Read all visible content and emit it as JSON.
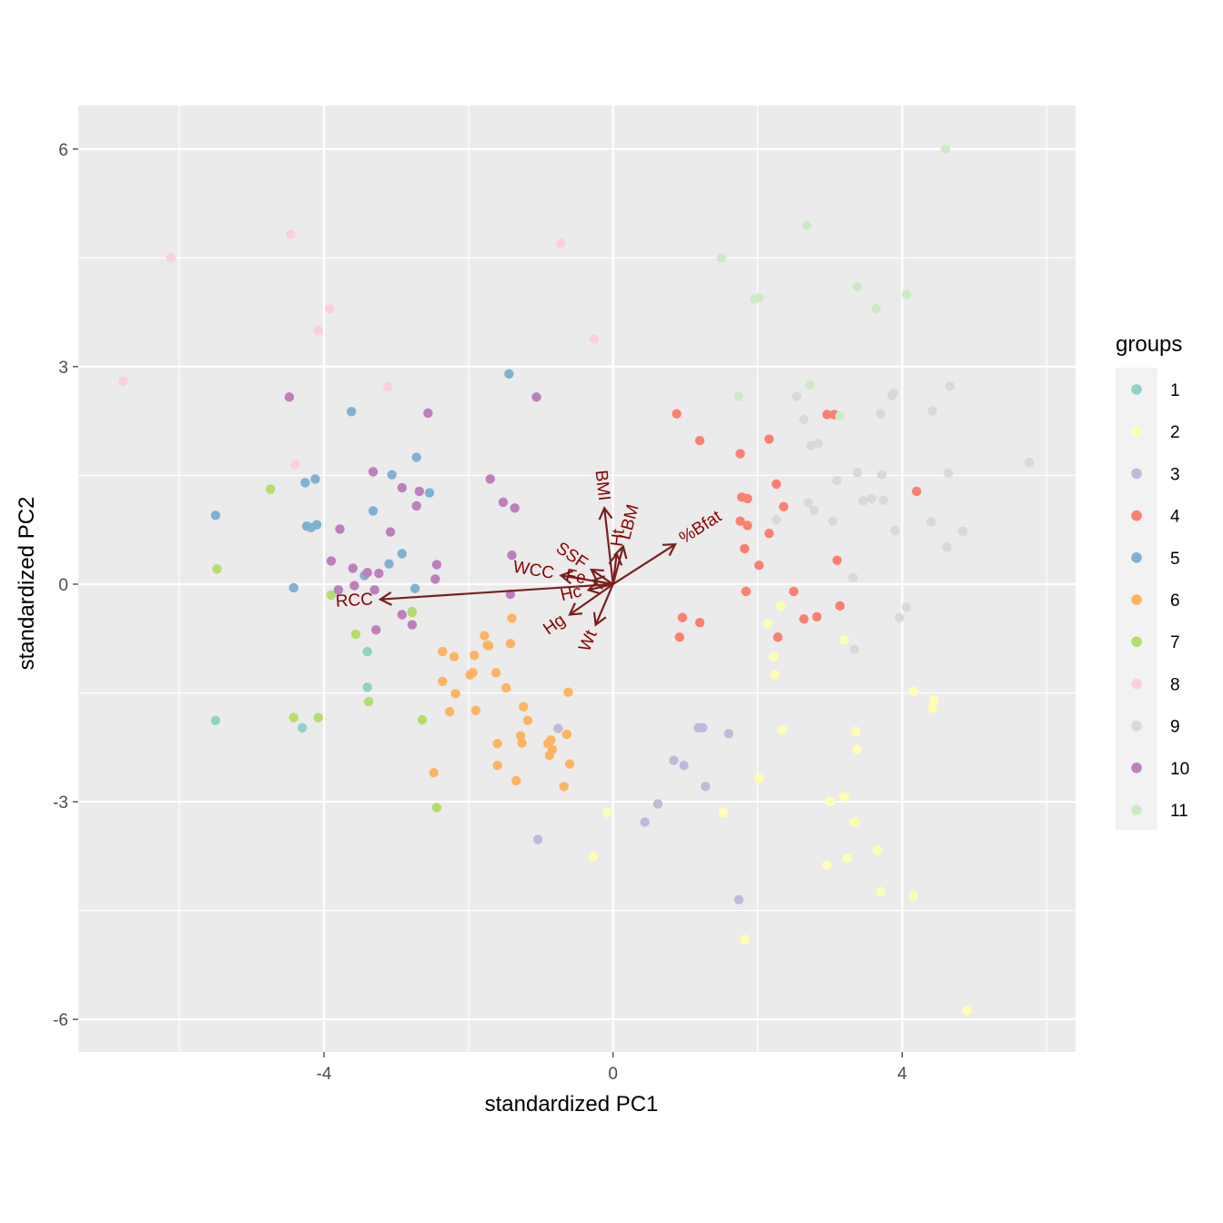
{
  "chart_data": {
    "type": "scatter",
    "xlabel": "standardized PC1",
    "ylabel": "standardized PC2",
    "xlim": [
      -7.4,
      6.4
    ],
    "ylim": [
      -6.45,
      6.6
    ],
    "xticks": [
      -4,
      0,
      4
    ],
    "yticks": [
      -6,
      -3,
      0,
      3,
      6
    ],
    "grid": true,
    "legend": {
      "title": "groups",
      "position": "right",
      "entries": [
        "1",
        "2",
        "3",
        "4",
        "5",
        "6",
        "7",
        "8",
        "9",
        "10",
        "11"
      ]
    },
    "colors": {
      "1": "#8DD3C7",
      "2": "#FFFFB3",
      "3": "#BEBADA",
      "4": "#FB8072",
      "5": "#80B1D3",
      "6": "#FDB462",
      "7": "#B3DE69",
      "8": "#FCCDE5",
      "9": "#D9D9D9",
      "10": "#BC80BD",
      "11": "#CCEBC5"
    },
    "arrow_color": "#7a1f1f",
    "series": [
      {
        "name": "1",
        "points": [
          [
            -5.5,
            -1.88
          ],
          [
            -4.3,
            -1.98
          ],
          [
            -3.4,
            -0.93
          ],
          [
            -3.4,
            -1.42
          ],
          [
            -2.78,
            -0.38
          ]
        ]
      },
      {
        "name": "2",
        "points": [
          [
            -0.08,
            -3.15
          ],
          [
            -0.28,
            -3.76
          ],
          [
            1.52,
            -3.15
          ],
          [
            1.82,
            -4.9
          ],
          [
            2.02,
            -2.68
          ],
          [
            2.22,
            -1.0
          ],
          [
            2.24,
            -1.25
          ],
          [
            2.32,
            -0.3
          ],
          [
            2.34,
            -2.01
          ],
          [
            2.14,
            -0.54
          ],
          [
            2.96,
            -3.87
          ],
          [
            3.0,
            -3.0
          ],
          [
            3.2,
            -2.93
          ],
          [
            3.24,
            -3.78
          ],
          [
            3.34,
            -3.28
          ],
          [
            3.36,
            -2.03
          ],
          [
            3.38,
            -2.28
          ],
          [
            3.2,
            -0.77
          ],
          [
            3.66,
            -3.67
          ],
          [
            3.7,
            -4.24
          ],
          [
            4.16,
            -1.48
          ],
          [
            4.16,
            -4.3
          ],
          [
            4.42,
            -1.71
          ],
          [
            4.44,
            -1.6
          ],
          [
            4.9,
            -5.88
          ]
        ]
      },
      {
        "name": "3",
        "points": [
          [
            -1.04,
            -3.52
          ],
          [
            -0.76,
            -1.99
          ],
          [
            0.44,
            -3.28
          ],
          [
            0.62,
            -3.03
          ],
          [
            0.84,
            -2.43
          ],
          [
            0.98,
            -2.5
          ],
          [
            1.18,
            -1.98
          ],
          [
            1.24,
            -1.98
          ],
          [
            1.28,
            -2.79
          ],
          [
            1.6,
            -2.06
          ],
          [
            1.74,
            -4.35
          ]
        ]
      },
      {
        "name": "4",
        "points": [
          [
            0.88,
            2.35
          ],
          [
            0.92,
            -0.73
          ],
          [
            0.96,
            -0.46
          ],
          [
            1.2,
            1.98
          ],
          [
            1.2,
            -0.53
          ],
          [
            1.76,
            1.8
          ],
          [
            1.76,
            0.87
          ],
          [
            1.78,
            1.2
          ],
          [
            1.82,
            0.49
          ],
          [
            1.84,
            -0.1
          ],
          [
            1.86,
            1.18
          ],
          [
            1.86,
            0.81
          ],
          [
            2.02,
            0.26
          ],
          [
            2.16,
            2.0
          ],
          [
            2.16,
            0.7
          ],
          [
            2.26,
            1.38
          ],
          [
            2.28,
            -0.73
          ],
          [
            2.36,
            1.07
          ],
          [
            2.5,
            -0.1
          ],
          [
            2.64,
            -0.48
          ],
          [
            2.82,
            -0.45
          ],
          [
            2.96,
            2.34
          ],
          [
            3.06,
            2.34
          ],
          [
            3.1,
            0.33
          ],
          [
            3.14,
            -0.3
          ],
          [
            4.2,
            1.28
          ]
        ]
      },
      {
        "name": "5",
        "points": [
          [
            -5.5,
            0.95
          ],
          [
            -4.42,
            -0.05
          ],
          [
            -4.26,
            1.4
          ],
          [
            -4.24,
            0.8
          ],
          [
            -4.18,
            0.78
          ],
          [
            -4.12,
            1.45
          ],
          [
            -4.1,
            0.82
          ],
          [
            -3.62,
            2.38
          ],
          [
            -3.44,
            0.12
          ],
          [
            -3.32,
            1.01
          ],
          [
            -3.1,
            0.28
          ],
          [
            -3.06,
            1.51
          ],
          [
            -2.92,
            0.42
          ],
          [
            -2.74,
            -0.06
          ],
          [
            -2.72,
            1.75
          ],
          [
            -2.54,
            1.26
          ],
          [
            -1.44,
            2.9
          ]
        ]
      },
      {
        "name": "6",
        "points": [
          [
            -2.48,
            -2.6
          ],
          [
            -2.36,
            -0.93
          ],
          [
            -2.36,
            -1.34
          ],
          [
            -2.26,
            -1.76
          ],
          [
            -2.2,
            -1.0
          ],
          [
            -2.18,
            -1.51
          ],
          [
            -1.98,
            -1.25
          ],
          [
            -1.94,
            -1.22
          ],
          [
            -1.92,
            -0.98
          ],
          [
            -1.9,
            -1.74
          ],
          [
            -1.78,
            -0.71
          ],
          [
            -1.74,
            -0.84
          ],
          [
            -1.72,
            -0.85
          ],
          [
            -1.62,
            -1.22
          ],
          [
            -1.6,
            -2.2
          ],
          [
            -1.6,
            -2.5
          ],
          [
            -1.48,
            -1.43
          ],
          [
            -1.42,
            -0.82
          ],
          [
            -1.4,
            -0.47
          ],
          [
            -1.34,
            -2.71
          ],
          [
            -1.28,
            -2.09
          ],
          [
            -1.26,
            -2.19
          ],
          [
            -1.24,
            -1.69
          ],
          [
            -1.18,
            -1.88
          ],
          [
            -0.9,
            -2.2
          ],
          [
            -0.88,
            -2.36
          ],
          [
            -0.86,
            -2.15
          ],
          [
            -0.84,
            -2.28
          ],
          [
            -0.68,
            -2.79
          ],
          [
            -0.64,
            -2.07
          ],
          [
            -0.62,
            -1.49
          ],
          [
            -0.6,
            -2.48
          ]
        ]
      },
      {
        "name": "7",
        "points": [
          [
            -5.48,
            0.21
          ],
          [
            -4.74,
            1.31
          ],
          [
            -4.42,
            -1.84
          ],
          [
            -4.08,
            -1.84
          ],
          [
            -3.9,
            -0.15
          ],
          [
            -3.56,
            -0.69
          ],
          [
            -3.38,
            -1.62
          ],
          [
            -2.78,
            -0.39
          ],
          [
            -2.64,
            -1.87
          ],
          [
            -2.44,
            -3.08
          ]
        ]
      },
      {
        "name": "8",
        "points": [
          [
            -6.78,
            2.8
          ],
          [
            -6.12,
            4.5
          ],
          [
            -4.46,
            4.82
          ],
          [
            -4.4,
            1.65
          ],
          [
            -4.08,
            3.5
          ],
          [
            -3.92,
            3.8
          ],
          [
            -3.12,
            2.72
          ],
          [
            -0.72,
            4.7
          ],
          [
            -0.26,
            3.38
          ]
        ]
      },
      {
        "name": "9",
        "points": [
          [
            2.26,
            0.89
          ],
          [
            2.54,
            2.59
          ],
          [
            2.64,
            2.27
          ],
          [
            2.7,
            1.12
          ],
          [
            2.74,
            1.91
          ],
          [
            2.78,
            1.02
          ],
          [
            2.84,
            1.94
          ],
          [
            3.04,
            0.87
          ],
          [
            3.1,
            1.43
          ],
          [
            3.32,
            0.09
          ],
          [
            3.34,
            -0.9
          ],
          [
            3.38,
            1.54
          ],
          [
            3.46,
            1.15
          ],
          [
            3.58,
            1.18
          ],
          [
            3.7,
            2.35
          ],
          [
            3.72,
            1.51
          ],
          [
            3.74,
            1.16
          ],
          [
            3.86,
            2.6
          ],
          [
            3.88,
            2.63
          ],
          [
            3.9,
            0.74
          ],
          [
            3.96,
            -0.46
          ],
          [
            4.06,
            -0.32
          ],
          [
            4.4,
            0.86
          ],
          [
            4.42,
            2.39
          ],
          [
            4.62,
            0.51
          ],
          [
            4.64,
            1.53
          ],
          [
            4.66,
            2.73
          ],
          [
            4.84,
            0.73
          ],
          [
            5.76,
            1.68
          ]
        ]
      },
      {
        "name": "10",
        "points": [
          [
            -4.48,
            2.58
          ],
          [
            -3.9,
            0.32
          ],
          [
            -3.8,
            -0.08
          ],
          [
            -3.78,
            0.76
          ],
          [
            -3.6,
            0.22
          ],
          [
            -3.58,
            -0.02
          ],
          [
            -3.4,
            0.16
          ],
          [
            -3.32,
            1.55
          ],
          [
            -3.3,
            -0.08
          ],
          [
            -3.28,
            -0.63
          ],
          [
            -3.24,
            0.15
          ],
          [
            -3.08,
            0.72
          ],
          [
            -2.92,
            1.33
          ],
          [
            -2.92,
            -0.42
          ],
          [
            -2.78,
            -0.56
          ],
          [
            -2.72,
            1.08
          ],
          [
            -2.68,
            1.28
          ],
          [
            -2.56,
            2.36
          ],
          [
            -2.46,
            0.07
          ],
          [
            -2.44,
            0.27
          ],
          [
            -1.7,
            1.45
          ],
          [
            -1.52,
            1.13
          ],
          [
            -1.42,
            -0.14
          ],
          [
            -1.4,
            0.4
          ],
          [
            -1.36,
            1.05
          ],
          [
            -1.06,
            2.58
          ]
        ]
      },
      {
        "name": "11",
        "points": [
          [
            1.5,
            4.5
          ],
          [
            1.74,
            2.59
          ],
          [
            1.96,
            3.93
          ],
          [
            2.02,
            3.95
          ],
          [
            2.68,
            4.95
          ],
          [
            2.72,
            2.75
          ],
          [
            3.14,
            2.32
          ],
          [
            3.38,
            4.1
          ],
          [
            3.64,
            3.8
          ],
          [
            4.06,
            4.0
          ],
          [
            4.6,
            6.0
          ]
        ]
      }
    ],
    "arrows": [
      {
        "label": "RCC",
        "x": -3.22,
        "y": -0.21
      },
      {
        "label": "%Bfat",
        "x": 0.86,
        "y": 0.55
      },
      {
        "label": "BMI",
        "x": -0.12,
        "y": 1.05
      },
      {
        "label": "LBM",
        "x": 0.14,
        "y": 0.52
      },
      {
        "label": "Wt",
        "x": -0.24,
        "y": -0.56
      },
      {
        "label": "Hg",
        "x": -0.6,
        "y": -0.42
      },
      {
        "label": "WCC",
        "x": -0.72,
        "y": 0.12
      },
      {
        "label": "SSF",
        "x": -0.3,
        "y": 0.2
      },
      {
        "label": "Ht",
        "x": 0.05,
        "y": 0.42
      },
      {
        "label": "Fe",
        "x": -0.28,
        "y": 0.05
      },
      {
        "label": "Hc",
        "x": -0.34,
        "y": -0.08
      }
    ]
  }
}
